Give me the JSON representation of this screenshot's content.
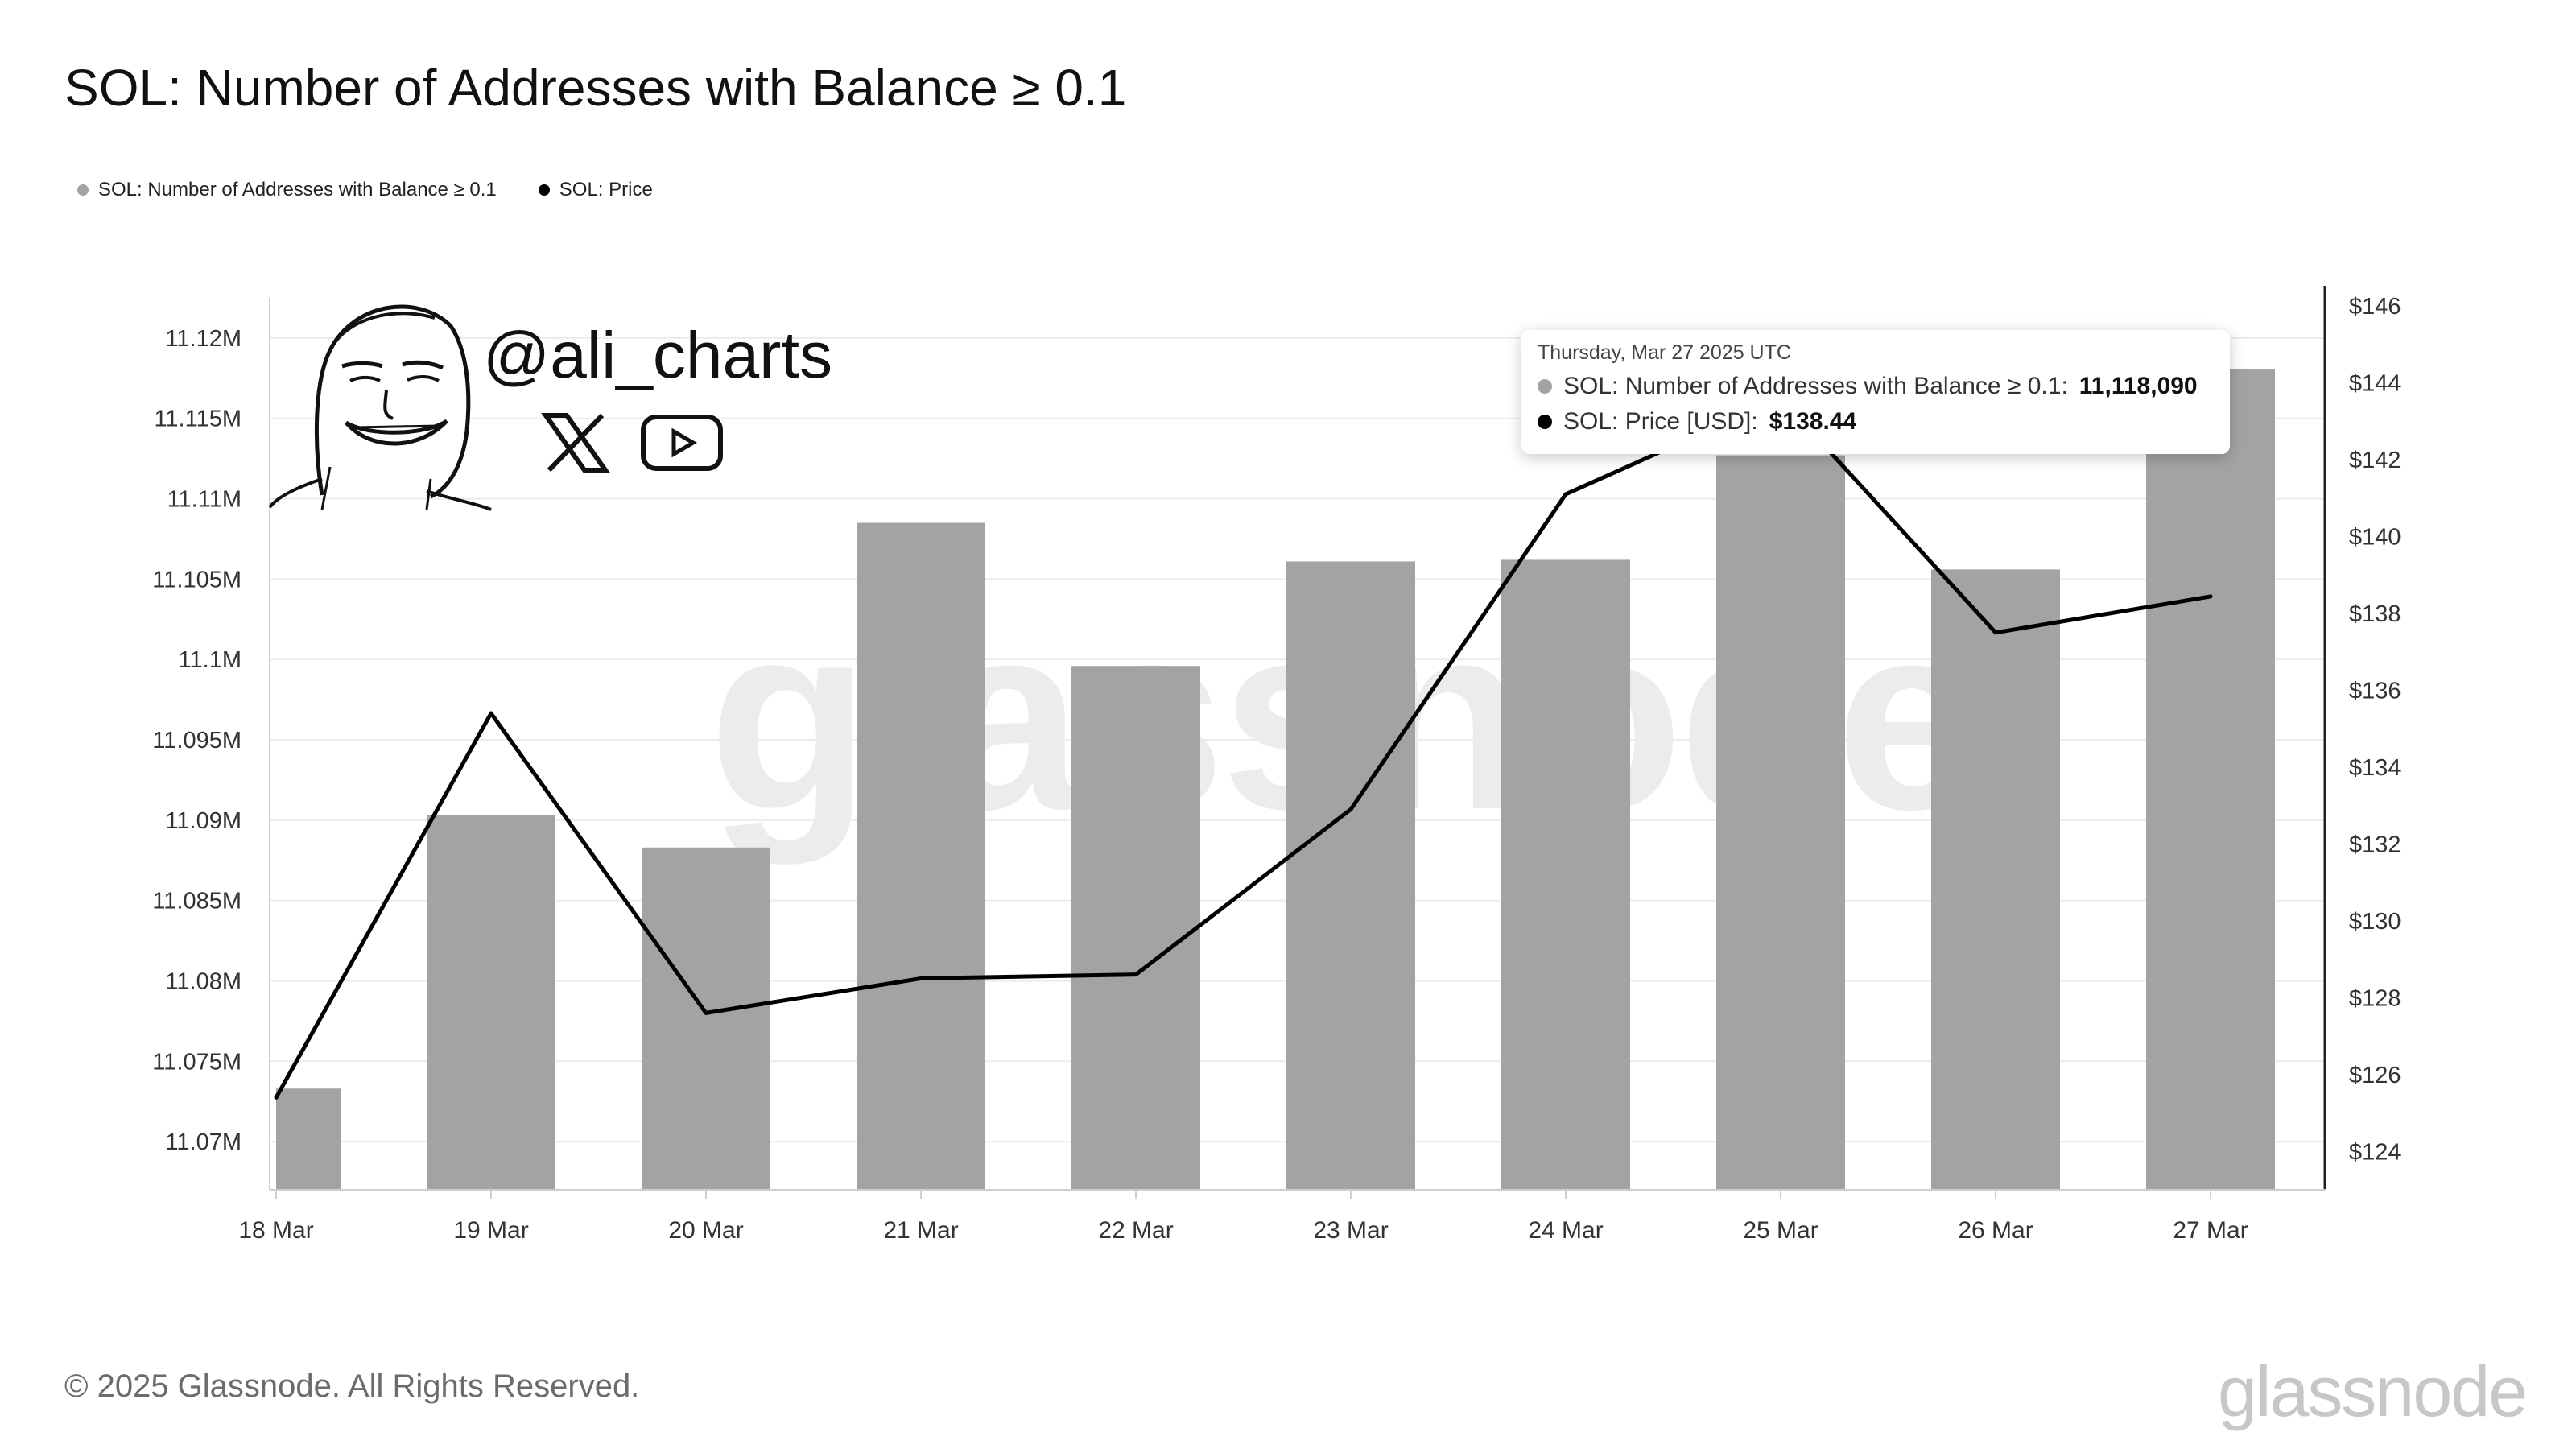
{
  "title": "SOL: Number of Addresses with Balance ≥ 0.1",
  "legend": [
    {
      "label": "SOL: Number of Addresses with Balance ≥ 0.1",
      "color": "#a3a3a3"
    },
    {
      "label": "SOL: Price",
      "color": "#000000"
    }
  ],
  "badge": {
    "handle": "@ali_charts",
    "icons": [
      "face-avatar-icon",
      "x-logo-icon",
      "youtube-icon"
    ]
  },
  "watermark": "glassnode",
  "tooltip": {
    "date": "Thursday, Mar 27 2025 UTC",
    "rows": [
      {
        "label": "SOL: Number of Addresses with Balance ≥ 0.1:",
        "value": "11,118,090",
        "color": "#a3a3a3"
      },
      {
        "label": "SOL: Price [USD]:",
        "value": "$138.44",
        "color": "#000000"
      }
    ]
  },
  "footer": {
    "copyright": "© 2025 Glassnode. All Rights Reserved.",
    "logo": "glassnode"
  },
  "chart_data": {
    "type": "bar",
    "title": "SOL: Number of Addresses with Balance ≥ 0.1",
    "categories": [
      "18 Mar",
      "19 Mar",
      "20 Mar",
      "21 Mar",
      "22 Mar",
      "23 Mar",
      "24 Mar",
      "25 Mar",
      "26 Mar",
      "27 Mar"
    ],
    "series": [
      {
        "name": "SOL: Number of Addresses with Balance ≥ 0.1",
        "type": "bar",
        "axis": "left",
        "color": "#a3a3a3",
        "values": [
          11073300,
          11090300,
          11088300,
          11108500,
          11099600,
          11106100,
          11106200,
          11112700,
          11105600,
          11118090
        ]
      },
      {
        "name": "SOL: Price",
        "type": "line",
        "axis": "right",
        "color": "#000000",
        "values": [
          125.4,
          135.4,
          127.6,
          128.5,
          128.6,
          132.9,
          141.1,
          143.6,
          137.5,
          138.44
        ]
      }
    ],
    "y_left": {
      "ticks": [
        "11.07M",
        "11.075M",
        "11.08M",
        "11.085M",
        "11.09M",
        "11.095M",
        "11.1M",
        "11.105M",
        "11.11M",
        "11.115M",
        "11.12M"
      ],
      "tick_values": [
        11070000,
        11075000,
        11080000,
        11085000,
        11090000,
        11095000,
        11100000,
        11105000,
        11110000,
        11115000,
        11120000
      ],
      "range": [
        11067000,
        11122000
      ]
    },
    "y_right": {
      "ticks": [
        "$124",
        "$126",
        "$128",
        "$130",
        "$132",
        "$134",
        "$136",
        "$138",
        "$140",
        "$142",
        "$144",
        "$146"
      ],
      "tick_values": [
        124,
        126,
        128,
        130,
        132,
        134,
        136,
        138,
        140,
        142,
        144,
        146
      ],
      "range": [
        123,
        146
      ]
    },
    "grid": true
  }
}
